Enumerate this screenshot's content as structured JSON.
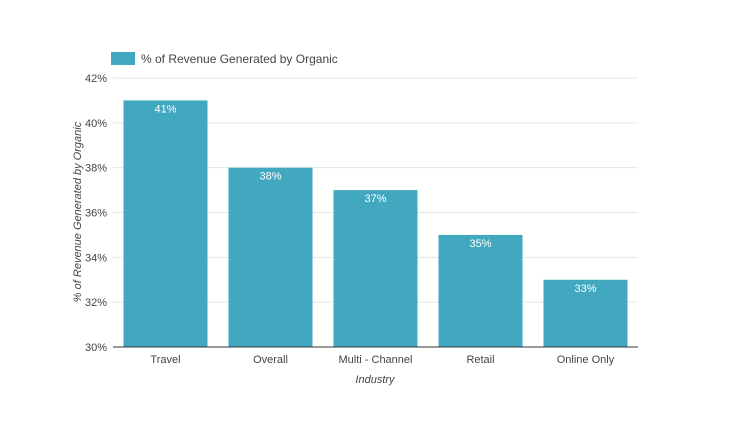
{
  "chart_data": {
    "type": "bar",
    "title": "",
    "categories": [
      "Travel",
      "Overall",
      "Multi - Channel",
      "Retail",
      "Online Only"
    ],
    "series": [
      {
        "name": "% of Revenue Generated by Organic",
        "values": [
          41,
          38,
          37,
          35,
          33
        ],
        "data_labels": [
          "41%",
          "38%",
          "37%",
          "35%",
          "33%"
        ],
        "color": "#42a8c0"
      }
    ],
    "xlabel": "Industry",
    "ylabel": "% of Revenue Generated by Organic",
    "ylim": [
      30,
      42
    ],
    "yticks": [
      30,
      32,
      34,
      36,
      38,
      40,
      42
    ],
    "ytick_labels": [
      "30%",
      "32%",
      "34%",
      "36%",
      "38%",
      "40%",
      "42%"
    ],
    "grid": true,
    "legend_position": "top-left"
  },
  "colors": {
    "bar": "#42a8c0",
    "grid": "#e6e6e6",
    "axis": "#333333",
    "text": "#444444"
  }
}
